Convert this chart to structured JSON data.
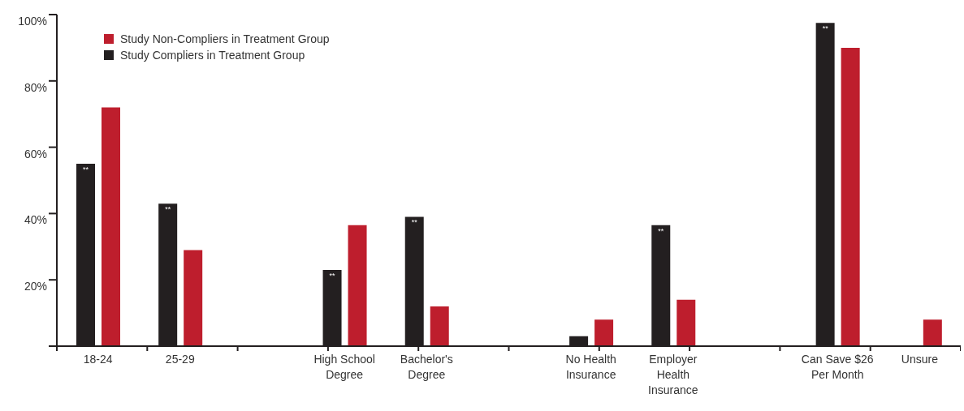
{
  "chart_data": {
    "type": "bar",
    "categories": [
      "18-24",
      "25-29",
      null,
      "High School Degree",
      "Bachelor's Degree",
      null,
      "No Health Insurance",
      "Employer Health Insurance",
      null,
      "Can Save $26 Per Month",
      "Unsure"
    ],
    "series": [
      {
        "name": "Study Compliers in Treatment Group",
        "color": "#231f20",
        "values": [
          55,
          43,
          null,
          23,
          39,
          null,
          3,
          36.5,
          null,
          97.5,
          null
        ],
        "value_labels": [
          "**",
          "**",
          null,
          "**",
          "**",
          null,
          null,
          "**",
          null,
          "**",
          null
        ]
      },
      {
        "name": "Study Non-Compliers in Treatment Group",
        "color": "#be1e2d",
        "values": [
          72,
          29,
          null,
          36.5,
          12,
          null,
          8,
          14,
          null,
          90,
          8
        ]
      }
    ],
    "ylim": [
      0,
      100
    ],
    "yticks": [
      {
        "value": 0,
        "label": null
      },
      {
        "value": 20,
        "label": "20%"
      },
      {
        "value": 40,
        "label": "40%"
      },
      {
        "value": 60,
        "label": "60%"
      },
      {
        "value": 80,
        "label": "80%"
      },
      {
        "value": 100,
        "label": "100%"
      }
    ],
    "grid": false,
    "legend": "top left"
  }
}
